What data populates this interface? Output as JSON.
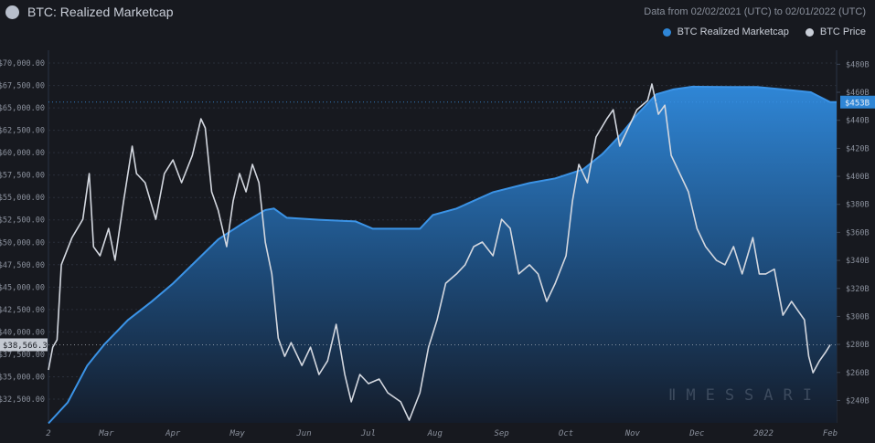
{
  "header": {
    "title": "BTC: Realized Marketcap",
    "subtitle": "Data from 02/02/2021 (UTC) to 02/01/2022 (UTC)"
  },
  "legend": [
    {
      "label": "BTC Realized Marketcap",
      "color": "#2f86d6"
    },
    {
      "label": "BTC Price",
      "color": "#c9ced8"
    }
  ],
  "watermark": "MESSARI",
  "chart_data": {
    "type": "area+line",
    "title": "BTC: Realized Marketcap",
    "x_ticks": [
      {
        "date": "2021-02-02",
        "label": "2"
      },
      {
        "date": "2021-03-01",
        "label": "Mar"
      },
      {
        "date": "2021-04-01",
        "label": "Apr"
      },
      {
        "date": "2021-05-01",
        "label": "May"
      },
      {
        "date": "2021-06-01",
        "label": "Jun"
      },
      {
        "date": "2021-07-01",
        "label": "Jul"
      },
      {
        "date": "2021-08-01",
        "label": "Aug"
      },
      {
        "date": "2021-09-01",
        "label": "Sep"
      },
      {
        "date": "2021-10-01",
        "label": "Oct"
      },
      {
        "date": "2021-11-01",
        "label": "Nov"
      },
      {
        "date": "2021-12-01",
        "label": "Dec"
      },
      {
        "date": "2022-01-01",
        "label": "2022"
      },
      {
        "date": "2022-02-01",
        "label": "Feb"
      }
    ],
    "xlim": [
      "2021-02-02",
      "2022-02-04"
    ],
    "left_axis": {
      "ylim": [
        29850,
        71430
      ],
      "ticks": [
        32500,
        35000,
        37500,
        40000,
        42500,
        45000,
        47500,
        50000,
        52500,
        55000,
        57500,
        60000,
        62500,
        65000,
        67500,
        70000
      ],
      "tick_labels": [
        "$32,500.00",
        "$35,000.00",
        "$37,500.00",
        "$40,000.00",
        "$42,500.00",
        "$45,000.00",
        "$47,500.00",
        "$50,000.00",
        "$52,500.00",
        "$55,000.00",
        "$57,500.00",
        "$60,000.00",
        "$62,500.00",
        "$65,000.00",
        "$67,500.00",
        "$70,000.00"
      ],
      "current_value": 38566.32,
      "current_label": "$38,566.32"
    },
    "right_axis": {
      "ylim": [
        224,
        490
      ],
      "ticks": [
        240,
        260,
        280,
        300,
        320,
        340,
        360,
        380,
        400,
        420,
        440,
        460,
        480
      ],
      "tick_labels": [
        "$240B",
        "$260B",
        "$280B",
        "$300B",
        "$320B",
        "$340B",
        "$360B",
        "$380B",
        "$400B",
        "$420B",
        "$440B",
        "$460B",
        "$480B"
      ],
      "current_value": 453,
      "current_label": "$453B"
    },
    "grid": true,
    "legend_position": "top-right",
    "series": [
      {
        "name": "BTC Realized Marketcap",
        "type": "area",
        "axis": "right",
        "unit": "USD billions",
        "color": "#2f86d6",
        "points": [
          [
            "2021-02-02",
            223.7
          ],
          [
            "2021-02-11",
            238.7
          ],
          [
            "2021-02-20",
            264.8
          ],
          [
            "2021-02-28",
            280
          ],
          [
            "2021-03-11",
            297.4
          ],
          [
            "2021-03-22",
            310.5
          ],
          [
            "2021-04-01",
            323.5
          ],
          [
            "2021-04-12",
            340
          ],
          [
            "2021-04-22",
            355
          ],
          [
            "2021-05-03",
            366
          ],
          [
            "2021-05-14",
            376
          ],
          [
            "2021-05-18",
            377
          ],
          [
            "2021-05-24",
            370.4
          ],
          [
            "2021-06-08",
            369
          ],
          [
            "2021-06-25",
            367.8
          ],
          [
            "2021-07-03",
            362.6
          ],
          [
            "2021-07-25",
            362.6
          ],
          [
            "2021-07-31",
            372.4
          ],
          [
            "2021-08-11",
            377
          ],
          [
            "2021-08-28",
            388.7
          ],
          [
            "2021-09-14",
            395.2
          ],
          [
            "2021-09-26",
            398.5
          ],
          [
            "2021-10-09",
            405
          ],
          [
            "2021-10-18",
            416
          ],
          [
            "2021-10-26",
            429
          ],
          [
            "2021-11-03",
            444
          ],
          [
            "2021-11-12",
            458.5
          ],
          [
            "2021-11-20",
            462
          ],
          [
            "2021-11-29",
            464
          ],
          [
            "2021-12-16",
            463.7
          ],
          [
            "2021-12-29",
            463.7
          ],
          [
            "2022-01-10",
            462
          ],
          [
            "2022-01-23",
            460
          ],
          [
            "2022-02-01",
            453
          ]
        ]
      },
      {
        "name": "BTC Price",
        "type": "line",
        "axis": "left",
        "unit": "USD",
        "color": "#c9ced8",
        "points": [
          [
            "2021-02-02",
            35756
          ],
          [
            "2021-02-04",
            38300
          ],
          [
            "2021-02-06",
            39120
          ],
          [
            "2021-02-08",
            47500
          ],
          [
            "2021-02-13",
            50530
          ],
          [
            "2021-02-18",
            52570
          ],
          [
            "2021-02-21",
            57670
          ],
          [
            "2021-02-23",
            49500
          ],
          [
            "2021-02-26",
            48500
          ],
          [
            "2021-03-02",
            51550
          ],
          [
            "2021-03-05",
            48000
          ],
          [
            "2021-03-09",
            54600
          ],
          [
            "2021-03-13",
            60730
          ],
          [
            "2021-03-15",
            57670
          ],
          [
            "2021-03-19",
            56650
          ],
          [
            "2021-03-24",
            52570
          ],
          [
            "2021-03-28",
            57670
          ],
          [
            "2021-04-01",
            59190
          ],
          [
            "2021-04-05",
            56650
          ],
          [
            "2021-04-10",
            59700
          ],
          [
            "2021-04-14",
            63780
          ],
          [
            "2021-04-16",
            62760
          ],
          [
            "2021-04-19",
            55630
          ],
          [
            "2021-04-22",
            53590
          ],
          [
            "2021-04-26",
            49520
          ],
          [
            "2021-04-29",
            54600
          ],
          [
            "2021-05-02",
            57670
          ],
          [
            "2021-05-05",
            55630
          ],
          [
            "2021-05-08",
            58690
          ],
          [
            "2021-05-11",
            56650
          ],
          [
            "2021-05-14",
            50000
          ],
          [
            "2021-05-17",
            46470
          ],
          [
            "2021-05-20",
            39320
          ],
          [
            "2021-05-23",
            37280
          ],
          [
            "2021-05-26",
            38810
          ],
          [
            "2021-05-31",
            36260
          ],
          [
            "2021-06-04",
            38300
          ],
          [
            "2021-06-08",
            35250
          ],
          [
            "2021-06-12",
            36770
          ],
          [
            "2021-06-16",
            40850
          ],
          [
            "2021-06-20",
            35250
          ],
          [
            "2021-06-23",
            32200
          ],
          [
            "2021-06-27",
            35250
          ],
          [
            "2021-07-01",
            34230
          ],
          [
            "2021-07-06",
            34740
          ],
          [
            "2021-07-10",
            33210
          ],
          [
            "2021-07-16",
            32200
          ],
          [
            "2021-07-20",
            30160
          ],
          [
            "2021-07-25",
            33210
          ],
          [
            "2021-07-29",
            38300
          ],
          [
            "2021-08-02",
            41360
          ],
          [
            "2021-08-06",
            45430
          ],
          [
            "2021-08-11",
            46470
          ],
          [
            "2021-08-15",
            47490
          ],
          [
            "2021-08-19",
            49520
          ],
          [
            "2021-08-23",
            50030
          ],
          [
            "2021-08-28",
            48500
          ],
          [
            "2021-09-01",
            52570
          ],
          [
            "2021-09-05",
            51550
          ],
          [
            "2021-09-09",
            46470
          ],
          [
            "2021-09-14",
            47490
          ],
          [
            "2021-09-18",
            46470
          ],
          [
            "2021-09-22",
            43400
          ],
          [
            "2021-09-26",
            45430
          ],
          [
            "2021-10-01",
            48500
          ],
          [
            "2021-10-04",
            54600
          ],
          [
            "2021-10-07",
            58690
          ],
          [
            "2021-10-11",
            56650
          ],
          [
            "2021-10-15",
            61750
          ],
          [
            "2021-10-20",
            63780
          ],
          [
            "2021-10-23",
            64800
          ],
          [
            "2021-10-26",
            60730
          ],
          [
            "2021-10-30",
            62760
          ],
          [
            "2021-11-03",
            64800
          ],
          [
            "2021-11-08",
            65820
          ],
          [
            "2021-11-10",
            67660
          ],
          [
            "2021-11-13",
            64290
          ],
          [
            "2021-11-16",
            65300
          ],
          [
            "2021-11-19",
            59700
          ],
          [
            "2021-11-23",
            57670
          ],
          [
            "2021-11-27",
            55630
          ],
          [
            "2021-12-01",
            51550
          ],
          [
            "2021-12-05",
            49520
          ],
          [
            "2021-12-10",
            48000
          ],
          [
            "2021-12-14",
            47490
          ],
          [
            "2021-12-18",
            49520
          ],
          [
            "2021-12-22",
            46470
          ],
          [
            "2021-12-27",
            50530
          ],
          [
            "2021-12-30",
            46470
          ],
          [
            "2022-01-02",
            46470
          ],
          [
            "2022-01-06",
            47000
          ],
          [
            "2022-01-10",
            41870
          ],
          [
            "2022-01-14",
            43400
          ],
          [
            "2022-01-17",
            42380
          ],
          [
            "2022-01-20",
            41360
          ],
          [
            "2022-01-22",
            37280
          ],
          [
            "2022-01-24",
            35450
          ],
          [
            "2022-01-27",
            36770
          ],
          [
            "2022-01-30",
            37790
          ],
          [
            "2022-02-01",
            38566.32
          ]
        ]
      }
    ]
  }
}
